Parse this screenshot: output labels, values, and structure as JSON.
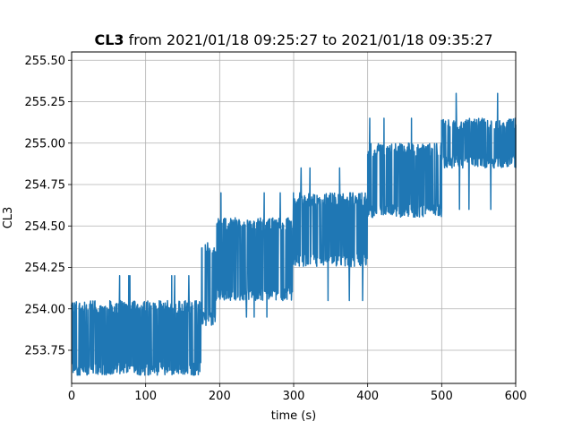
{
  "chart_data": {
    "type": "line",
    "title_bold": "CL3",
    "title_rest": "from 2021/01/18 09:25:27 to 2021/01/18 09:35:27",
    "xlabel": "time (s)",
    "ylabel": "CL3",
    "xlim": [
      0,
      600
    ],
    "ylim": [
      253.55,
      255.55
    ],
    "xticks": [
      0,
      100,
      200,
      300,
      400,
      500,
      600
    ],
    "xtick_labels": [
      "0",
      "100",
      "200",
      "300",
      "400",
      "500",
      "600"
    ],
    "yticks": [
      253.75,
      254.0,
      254.25,
      254.5,
      254.75,
      255.0,
      255.25,
      255.5
    ],
    "ytick_labels": [
      "253.75",
      "254.00",
      "254.25",
      "254.50",
      "254.75",
      "255.00",
      "255.25",
      "255.50"
    ],
    "grid": true,
    "color": "#1f77b4",
    "series_note": "noisy signal with step increases; values are approximate low/high bands per segment",
    "segments": [
      {
        "x_start": 0,
        "x_end": 175,
        "low": 253.6,
        "high": 254.05,
        "spikes_high": [
          254.2
        ],
        "spikes_low": [
          253.6
        ]
      },
      {
        "x_start": 175,
        "x_end": 195,
        "low": 253.9,
        "high": 254.4,
        "spikes_high": [
          254.55
        ],
        "spikes_low": [
          253.9
        ]
      },
      {
        "x_start": 195,
        "x_end": 300,
        "low": 254.05,
        "high": 254.55,
        "spikes_high": [
          254.7
        ],
        "spikes_low": [
          253.95
        ]
      },
      {
        "x_start": 300,
        "x_end": 400,
        "low": 254.25,
        "high": 254.7,
        "spikes_high": [
          254.85
        ],
        "spikes_low": [
          254.05
        ]
      },
      {
        "x_start": 400,
        "x_end": 500,
        "low": 254.55,
        "high": 255.0,
        "spikes_high": [
          255.15
        ],
        "spikes_low": [
          254.5
        ]
      },
      {
        "x_start": 500,
        "x_end": 600,
        "low": 254.85,
        "high": 255.15,
        "spikes_high": [
          255.3,
          255.45
        ],
        "spikes_low": [
          254.6
        ]
      }
    ]
  }
}
